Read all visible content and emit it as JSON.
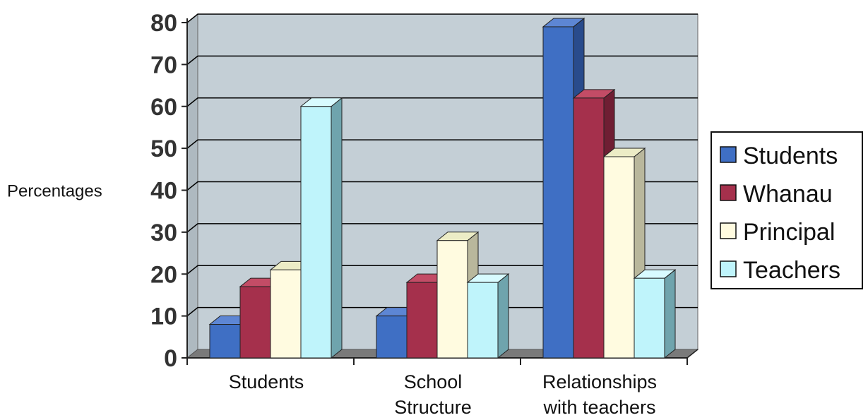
{
  "chart_data": {
    "type": "bar",
    "categories": [
      [
        "Students"
      ],
      [
        "School",
        "Structure"
      ],
      [
        "Relationships",
        "with teachers"
      ]
    ],
    "series": [
      {
        "name": "Students",
        "values": [
          8,
          10,
          79
        ]
      },
      {
        "name": "Whanau",
        "values": [
          17,
          18,
          62
        ]
      },
      {
        "name": "Principal",
        "values": [
          21,
          28,
          48
        ]
      },
      {
        "name": "Teachers",
        "values": [
          60,
          18,
          19
        ]
      }
    ],
    "ylabel": "Percentages",
    "ylim": [
      0,
      80
    ],
    "yticks": [
      "0",
      "10",
      "20",
      "30",
      "40",
      "50",
      "60",
      "70",
      "80"
    ],
    "grid": true,
    "legend_position": "right",
    "three_d": true,
    "colors": {
      "series_front": [
        "#3f6fc4",
        "#a5304c",
        "#fffbe0",
        "#bff4fb"
      ],
      "series_side": [
        "#294b8c",
        "#6f1e33",
        "#b9b79c",
        "#6fa4ad"
      ],
      "series_top": [
        "#5d86d4",
        "#c34c66",
        "#ececc6",
        "#d8fbff"
      ],
      "wall": "#c4cfd6",
      "floor": "#7a7a7a",
      "gridline": "#000000"
    }
  }
}
